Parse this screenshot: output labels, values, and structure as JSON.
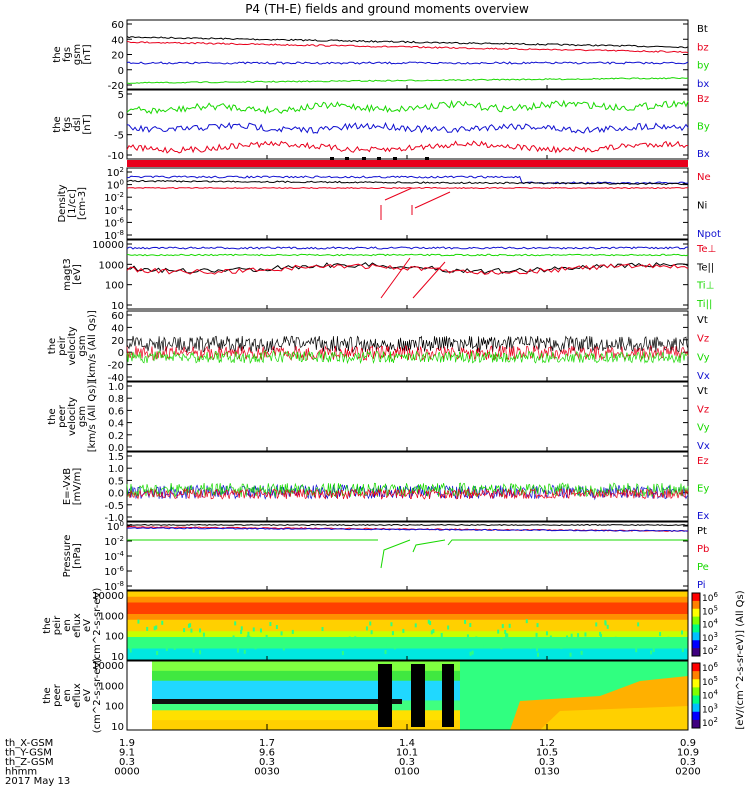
{
  "title": "P4 (TH-E) fields and ground moments overview",
  "colors": {
    "black": "#000000",
    "red": "#e8001c",
    "green": "#18d800",
    "blue": "#1010d0"
  },
  "bar_colorbar_labels": [
    "10^6",
    "10^5",
    "10^4",
    "10^3",
    "10^2"
  ],
  "colorbar_title": "[eV/(cm^2-s-sr-eV)] (All Qs)",
  "footer": {
    "row_labels": [
      "th_X-GSM",
      "th_Y-GSM",
      "th_Z-GSM",
      "hhmm",
      "2017 May 13"
    ],
    "columns": [
      [
        "1.9",
        "9.1",
        "0.3",
        "0000"
      ],
      [
        "1.7",
        "9.6",
        "0.3",
        "0030"
      ],
      [
        "1.4",
        "10.1",
        "0.3",
        "0100"
      ],
      [
        "1.2",
        "10.5",
        "0.3",
        "0130"
      ],
      [
        "0.9",
        "10.9",
        "0.3",
        "0200"
      ]
    ]
  },
  "panels": [
    {
      "ylabel": [
        "the",
        "fgs",
        "gsm",
        "[nT]"
      ],
      "ticks": [
        "60",
        "40",
        "20",
        "0",
        "-20"
      ],
      "legend": [
        [
          "Bt",
          "black"
        ],
        [
          "bz",
          "red"
        ],
        [
          "by",
          "green"
        ],
        [
          "bx",
          "blue"
        ]
      ]
    },
    {
      "ylabel": [
        "the",
        "fgs",
        "dsl",
        "[nT]"
      ],
      "ticks": [
        "5",
        "0",
        "-5",
        "-10"
      ],
      "legend": [
        [
          "Bz",
          "red"
        ],
        [
          "By",
          "green"
        ],
        [
          "Bx",
          "blue"
        ]
      ]
    },
    {
      "ylabel": [
        "Density",
        "[1/cc]",
        "[cm-3]"
      ],
      "ticks": [
        "10^2",
        "10^0",
        "10^-2",
        "10^-4",
        "10^-6",
        "10^-8"
      ],
      "legend": [
        [
          "Ne",
          "red"
        ],
        [
          "Ni",
          "black"
        ],
        [
          "Npot",
          "blue"
        ]
      ]
    },
    {
      "ylabel": [
        "magt3",
        "[eV]"
      ],
      "ticks": [
        "10000",
        "1000",
        "100",
        "10"
      ],
      "legend": [
        [
          "Te⊥",
          "red"
        ],
        [
          "Te||",
          "black"
        ],
        [
          "Ti⊥",
          "green"
        ],
        [
          "Ti||",
          "green"
        ]
      ]
    },
    {
      "ylabel": [
        "the",
        "peir",
        "velocity",
        "gsm",
        "[km/s (All Qs)]"
      ],
      "ticks": [
        "60",
        "40",
        "20",
        "0",
        "-20",
        "-40"
      ],
      "legend": [
        [
          "Vt",
          "black"
        ],
        [
          "Vz",
          "red"
        ],
        [
          "Vy",
          "green"
        ],
        [
          "Vx",
          "blue"
        ]
      ]
    },
    {
      "ylabel": [
        "the",
        "peer",
        "velocity",
        "gsm",
        "[km/s (All Qs)]"
      ],
      "ticks": [
        "1.0",
        "0.8",
        "0.6",
        "0.4",
        "0.2",
        "0.0"
      ],
      "legend": [
        [
          "Vt",
          "black"
        ],
        [
          "Vz",
          "red"
        ],
        [
          "Vy",
          "green"
        ],
        [
          "Vx",
          "blue"
        ]
      ]
    },
    {
      "ylabel": [
        "E=-VxB",
        "[mV/m]"
      ],
      "ticks": [
        "1.5",
        "1.0",
        "0.5",
        "0.0",
        "-0.5",
        "-1.0"
      ],
      "legend": [
        [
          "Ez",
          "red"
        ],
        [
          "Ey",
          "green"
        ],
        [
          "Ex",
          "blue"
        ]
      ]
    },
    {
      "ylabel": [
        "Pressure",
        "[nPa]"
      ],
      "ticks": [
        "10^0",
        "10^-2",
        "10^-4",
        "10^-6",
        "10^-8"
      ],
      "legend": [
        [
          "Pt",
          "black"
        ],
        [
          "Pb",
          "red"
        ],
        [
          "Pe",
          "green"
        ],
        [
          "Pi",
          "blue"
        ]
      ]
    },
    {
      "ylabel": [
        "the",
        "peir",
        "en",
        "eflux",
        "eV",
        "(cm^2-s-sr-eV)"
      ],
      "ticks": [
        "10000",
        "1000",
        "100",
        "10"
      ],
      "legend": []
    },
    {
      "ylabel": [
        "the",
        "peer",
        "en",
        "eflux",
        "eV",
        "(cm^2-s-sr-eV)"
      ],
      "ticks": [
        "10000",
        "1000",
        "100",
        "10"
      ],
      "legend": []
    }
  ],
  "chart_data": {
    "type": "line",
    "title": "P4 (TH-E) fields and ground moments overview",
    "x": [
      "0000",
      "0030",
      "0100",
      "0130",
      "0200"
    ],
    "xlabel": "hhmm",
    "series": [
      {
        "name": "Bt",
        "x": [
          "0000",
          "0030",
          "0100",
          "0130",
          "0200"
        ],
        "values": [
          38,
          36,
          33,
          30,
          28
        ]
      },
      {
        "name": "bz",
        "x": [
          "0000",
          "0030",
          "0100",
          "0130",
          "0200"
        ],
        "values": [
          34,
          32,
          30,
          27,
          25
        ]
      },
      {
        "name": "by",
        "x": [
          "0000",
          "0030",
          "0100",
          "0130",
          "0200"
        ],
        "values": [
          9,
          9,
          8,
          8,
          7
        ]
      },
      {
        "name": "bx",
        "x": [
          "0000",
          "0030",
          "0100",
          "0130",
          "0200"
        ],
        "values": [
          -17,
          -17,
          -16,
          -15,
          -14
        ]
      }
    ],
    "ylim": [
      -25,
      65
    ]
  }
}
